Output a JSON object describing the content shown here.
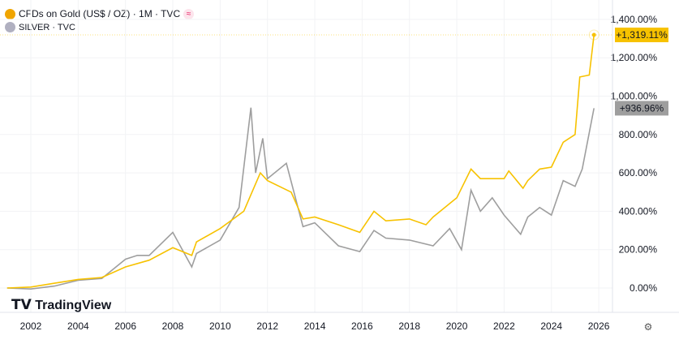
{
  "legend": {
    "gold": "CFDs on Gold (US$ / OZ) · 1M · TVC",
    "silver": "SILVER · TVC",
    "approx_icon": "≈"
  },
  "logo": "TradingView",
  "settings_icon": "gear-icon",
  "colors": {
    "gold": "#f7c200",
    "silver": "#9e9e9e"
  },
  "chart_data": {
    "type": "line",
    "xlabel": "",
    "ylabel": "",
    "xlim": [
      2000.9,
      2026.6
    ],
    "ylim": [
      -50,
      1470
    ],
    "x_ticks": [
      "2002",
      "2004",
      "2006",
      "2008",
      "2010",
      "2012",
      "2014",
      "2016",
      "2018",
      "2020",
      "2022",
      "2024",
      "2026"
    ],
    "y_ticks": [
      {
        "v": 0,
        "label": "0.00%"
      },
      {
        "v": 200,
        "label": "200.00%"
      },
      {
        "v": 400,
        "label": "400.00%"
      },
      {
        "v": 600,
        "label": "600.00%"
      },
      {
        "v": 800,
        "label": "800.00%"
      },
      {
        "v": 1000,
        "label": "1,000.00%"
      },
      {
        "v": 1200,
        "label": "1,200.00%"
      },
      {
        "v": 1400,
        "label": "1,400.00%"
      }
    ],
    "series": [
      {
        "name": "Gold",
        "last_label": "+1,319.11%",
        "last": 1319.11,
        "x": [
          2001,
          2002,
          2003,
          2004,
          2005,
          2006,
          2007,
          2008,
          2008.8,
          2009,
          2010,
          2011,
          2011.7,
          2012,
          2013,
          2013.5,
          2014,
          2015,
          2015.9,
          2016.5,
          2017,
          2018,
          2018.7,
          2019,
          2019.7,
          2020,
          2020.6,
          2021,
          2022,
          2022.2,
          2022.8,
          2023,
          2023.5,
          2024,
          2024.5,
          2025,
          2025.2,
          2025.6,
          2025.8
        ],
        "y": [
          0,
          5,
          25,
          45,
          55,
          110,
          145,
          210,
          170,
          240,
          310,
          400,
          600,
          560,
          500,
          360,
          370,
          330,
          290,
          400,
          350,
          360,
          330,
          370,
          440,
          470,
          620,
          570,
          570,
          610,
          520,
          560,
          620,
          630,
          760,
          800,
          1100,
          1110,
          1319
        ]
      },
      {
        "name": "Silver",
        "last_label": "+936.96%",
        "last": 936.96,
        "x": [
          2001,
          2002,
          2003,
          2004,
          2005,
          2006,
          2006.5,
          2007,
          2008,
          2008.8,
          2009,
          2010,
          2010.8,
          2011.3,
          2011.5,
          2011.8,
          2012,
          2012.8,
          2013.5,
          2014,
          2015,
          2015.9,
          2016.5,
          2017,
          2018,
          2019,
          2019.7,
          2020.2,
          2020.6,
          2021,
          2021.5,
          2022,
          2022.7,
          2023,
          2023.5,
          2024,
          2024.5,
          2025,
          2025.3,
          2025.8
        ],
        "y": [
          0,
          -5,
          10,
          40,
          50,
          150,
          170,
          170,
          290,
          110,
          180,
          250,
          420,
          940,
          600,
          780,
          570,
          650,
          320,
          340,
          220,
          190,
          300,
          260,
          250,
          220,
          310,
          200,
          510,
          400,
          470,
          380,
          280,
          370,
          420,
          380,
          560,
          530,
          620,
          937
        ]
      }
    ]
  }
}
